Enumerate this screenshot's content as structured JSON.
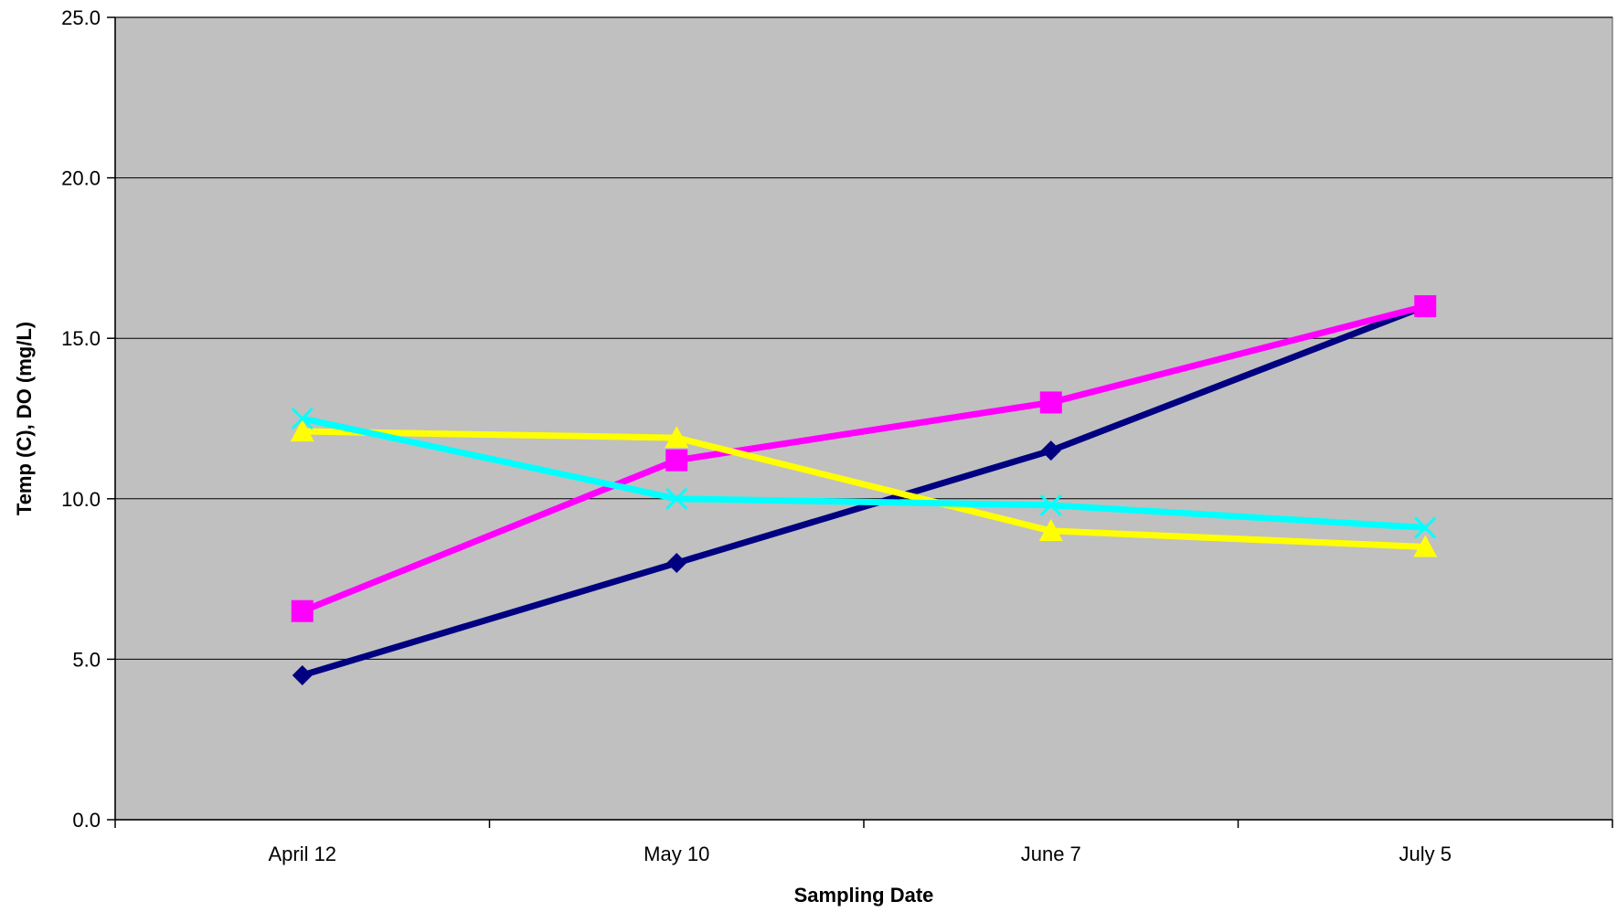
{
  "chart_data": {
    "type": "line",
    "title": "",
    "xlabel": "Sampling Date",
    "ylabel": "Temp (C), DO (mg/L)",
    "categories": [
      "April 12",
      "May 10",
      "June 7",
      "July 5"
    ],
    "ylim": [
      0,
      25
    ],
    "yticks": [
      "0.0",
      "5.0",
      "10.0",
      "15.0",
      "20.0",
      "25.0"
    ],
    "ytick_values": [
      0,
      5,
      10,
      15,
      20,
      25
    ],
    "grid": true,
    "background": "#c0c0c0",
    "series": [
      {
        "values": [
          4.5,
          8.0,
          11.5,
          16.0
        ],
        "color": "#000080",
        "marker": "diamond"
      },
      {
        "values": [
          6.5,
          11.2,
          13.0,
          16.0
        ],
        "color": "#ff00ff",
        "marker": "square"
      },
      {
        "values": [
          12.1,
          11.9,
          9.0,
          8.5
        ],
        "color": "#ffff00",
        "marker": "triangle"
      },
      {
        "values": [
          12.5,
          10.0,
          9.8,
          9.1
        ],
        "color": "#00ffff",
        "marker": "x"
      }
    ]
  }
}
